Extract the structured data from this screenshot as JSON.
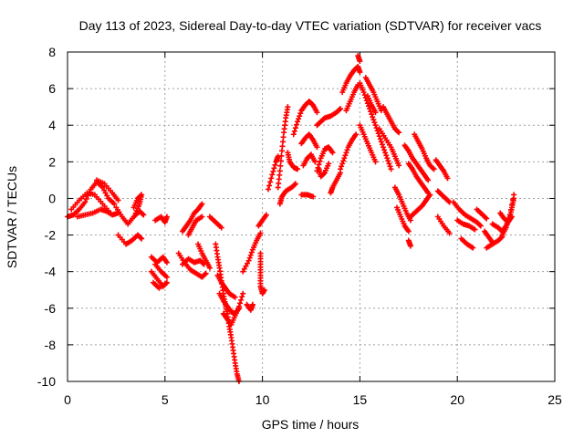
{
  "chart_data": {
    "type": "scatter",
    "title": "Day 113 of 2023, Sidereal Day-to-day VTEC variation (SDTVAR) for receiver vacs",
    "xlabel": "GPS time / hours",
    "ylabel": "SDTVAR / TECUs",
    "xlim": [
      0,
      25
    ],
    "ylim": [
      -10,
      8
    ],
    "xticks": [
      "0",
      "5",
      "10",
      "15",
      "20",
      "25"
    ],
    "yticks": [
      "-10",
      "-8",
      "-6",
      "-4",
      "-2",
      "0",
      "2",
      "4",
      "6",
      "8"
    ],
    "grid": true,
    "marker": "plus",
    "color": "#ff0000",
    "tracks": [
      [
        [
          0.0,
          -1.0
        ],
        [
          0.3,
          -0.9
        ],
        [
          0.6,
          -0.6
        ],
        [
          0.9,
          -0.2
        ],
        [
          1.2,
          0.5
        ],
        [
          1.5,
          0.9
        ],
        [
          1.8,
          0.6
        ],
        [
          2.1,
          0.0
        ],
        [
          2.4,
          -0.3
        ]
      ],
      [
        [
          0.5,
          -1.0
        ],
        [
          0.9,
          -0.9
        ],
        [
          1.3,
          -0.8
        ],
        [
          1.7,
          -0.6
        ],
        [
          2.0,
          -0.7
        ],
        [
          2.3,
          -0.9
        ],
        [
          2.6,
          -0.8
        ]
      ],
      [
        [
          0.2,
          -0.6
        ],
        [
          0.6,
          -0.1
        ],
        [
          1.0,
          0.3
        ],
        [
          1.4,
          0.2
        ],
        [
          1.8,
          -0.3
        ],
        [
          2.2,
          -0.8
        ]
      ],
      [
        [
          1.5,
          1.0
        ],
        [
          1.9,
          0.8
        ],
        [
          2.3,
          0.3
        ],
        [
          2.6,
          -0.1
        ]
      ],
      [
        [
          2.5,
          -0.5
        ],
        [
          2.8,
          -1.0
        ],
        [
          3.1,
          -1.4
        ],
        [
          3.4,
          -1.0
        ],
        [
          3.7,
          -0.7
        ],
        [
          3.9,
          -0.9
        ]
      ],
      [
        [
          2.6,
          -2.0
        ],
        [
          3.0,
          -2.5
        ],
        [
          3.3,
          -2.3
        ],
        [
          3.6,
          -2.0
        ],
        [
          3.8,
          -2.2
        ]
      ],
      [
        [
          3.4,
          -0.5
        ],
        [
          3.6,
          0.0
        ],
        [
          3.8,
          0.2
        ],
        [
          3.7,
          -0.3
        ],
        [
          3.5,
          -0.8
        ]
      ],
      [
        [
          4.5,
          -1.2
        ],
        [
          4.8,
          -1.0
        ],
        [
          5.0,
          -1.3
        ],
        [
          5.1,
          -1.0
        ]
      ],
      [
        [
          4.3,
          -3.2
        ],
        [
          4.6,
          -3.5
        ],
        [
          4.9,
          -3.2
        ],
        [
          5.1,
          -3.5
        ]
      ],
      [
        [
          4.3,
          -4.0
        ],
        [
          4.6,
          -4.4
        ],
        [
          4.9,
          -4.8
        ],
        [
          5.1,
          -4.6
        ],
        [
          4.7,
          -4.9
        ],
        [
          4.4,
          -4.6
        ]
      ],
      [
        [
          4.5,
          -3.6
        ],
        [
          4.8,
          -4.0
        ],
        [
          5.1,
          -4.3
        ]
      ],
      [
        [
          5.7,
          -3.0
        ],
        [
          6.0,
          -3.5
        ],
        [
          6.3,
          -3.9
        ],
        [
          6.6,
          -4.1
        ],
        [
          6.9,
          -4.3
        ],
        [
          7.1,
          -4.1
        ]
      ],
      [
        [
          5.9,
          -3.6
        ],
        [
          6.2,
          -3.3
        ],
        [
          6.5,
          -3.5
        ],
        [
          6.8,
          -3.4
        ],
        [
          7.0,
          -3.6
        ]
      ],
      [
        [
          5.9,
          -1.8
        ],
        [
          6.1,
          -1.5
        ],
        [
          6.3,
          -1.2
        ],
        [
          6.5,
          -0.8
        ],
        [
          6.7,
          -0.6
        ],
        [
          6.9,
          -0.3
        ]
      ],
      [
        [
          6.2,
          -2.0
        ],
        [
          6.4,
          -1.6
        ],
        [
          6.6,
          -1.2
        ],
        [
          6.9,
          -1.0
        ]
      ],
      [
        [
          6.7,
          -2.5
        ],
        [
          6.9,
          -3.0
        ],
        [
          7.1,
          -3.4
        ],
        [
          7.3,
          -3.8
        ]
      ],
      [
        [
          7.3,
          -1.0
        ],
        [
          7.6,
          -1.3
        ],
        [
          7.9,
          -1.6
        ]
      ],
      [
        [
          7.6,
          -2.5
        ],
        [
          7.7,
          -3.2
        ],
        [
          7.8,
          -3.8
        ],
        [
          7.9,
          -4.5
        ],
        [
          8.0,
          -5.2
        ],
        [
          8.1,
          -5.8
        ],
        [
          8.2,
          -6.3
        ],
        [
          8.3,
          -7.0
        ],
        [
          8.4,
          -7.6
        ],
        [
          8.5,
          -8.3
        ],
        [
          8.6,
          -9.0
        ],
        [
          8.7,
          -9.6
        ],
        [
          8.8,
          -10.0
        ]
      ],
      [
        [
          7.8,
          -5.2
        ],
        [
          8.0,
          -5.6
        ],
        [
          8.2,
          -5.9
        ],
        [
          8.4,
          -6.2
        ],
        [
          8.6,
          -6.3
        ],
        [
          8.8,
          -6.0
        ]
      ],
      [
        [
          7.7,
          -4.2
        ],
        [
          7.9,
          -4.6
        ],
        [
          8.1,
          -4.9
        ],
        [
          8.3,
          -5.2
        ],
        [
          8.6,
          -5.4
        ]
      ],
      [
        [
          8.0,
          -6.3
        ],
        [
          8.2,
          -6.6
        ],
        [
          8.4,
          -6.9
        ],
        [
          8.6,
          -6.4
        ],
        [
          8.8,
          -5.9
        ],
        [
          9.0,
          -5.2
        ]
      ],
      [
        [
          9.2,
          -5.8
        ],
        [
          9.4,
          -6.1
        ],
        [
          9.5,
          -5.8
        ]
      ],
      [
        [
          9.0,
          -4.0
        ],
        [
          9.3,
          -3.4
        ],
        [
          9.5,
          -2.8
        ],
        [
          9.7,
          -2.3
        ],
        [
          9.9,
          -1.9
        ]
      ],
      [
        [
          9.9,
          -3.0
        ],
        [
          9.9,
          -3.6
        ],
        [
          9.9,
          -4.2
        ],
        [
          9.9,
          -4.8
        ],
        [
          10.0,
          -5.2
        ],
        [
          10.1,
          -5.0
        ]
      ],
      [
        [
          9.8,
          -1.5
        ],
        [
          10.0,
          -1.2
        ],
        [
          10.2,
          -0.9
        ]
      ],
      [
        [
          10.3,
          0.5
        ],
        [
          10.5,
          1.3
        ],
        [
          10.7,
          2.0
        ],
        [
          10.8,
          2.3
        ]
      ],
      [
        [
          10.8,
          0.6
        ],
        [
          10.9,
          1.5
        ],
        [
          11.0,
          2.6
        ],
        [
          11.1,
          3.6
        ],
        [
          11.2,
          4.4
        ],
        [
          11.3,
          5.0
        ]
      ],
      [
        [
          10.9,
          -0.3
        ],
        [
          11.0,
          0.1
        ],
        [
          11.2,
          0.4
        ],
        [
          11.5,
          0.6
        ],
        [
          11.7,
          0.8
        ]
      ],
      [
        [
          11.3,
          2.5
        ],
        [
          11.4,
          2.0
        ],
        [
          11.6,
          1.7
        ],
        [
          11.8,
          1.6
        ]
      ],
      [
        [
          11.6,
          3.5
        ],
        [
          11.8,
          4.2
        ],
        [
          12.0,
          4.8
        ],
        [
          12.2,
          5.1
        ],
        [
          12.4,
          5.3
        ],
        [
          12.6,
          5.1
        ],
        [
          12.8,
          4.7
        ]
      ],
      [
        [
          12.0,
          0.2
        ],
        [
          12.3,
          0.2
        ],
        [
          12.6,
          0.1
        ]
      ],
      [
        [
          12.0,
          3.0
        ],
        [
          12.2,
          3.3
        ],
        [
          12.4,
          3.5
        ],
        [
          12.6,
          3.2
        ],
        [
          12.8,
          2.8
        ]
      ],
      [
        [
          12.1,
          1.8
        ],
        [
          12.3,
          2.2
        ],
        [
          12.5,
          2.4
        ],
        [
          12.7,
          2.0
        ]
      ],
      [
        [
          12.8,
          1.5
        ],
        [
          13.0,
          2.2
        ],
        [
          13.2,
          2.7
        ],
        [
          13.4,
          2.8
        ],
        [
          13.6,
          2.5
        ]
      ],
      [
        [
          12.8,
          4.0
        ],
        [
          13.0,
          4.2
        ],
        [
          13.2,
          4.4
        ],
        [
          13.5,
          4.5
        ],
        [
          13.8,
          4.7
        ],
        [
          14.0,
          4.9
        ]
      ],
      [
        [
          12.9,
          1.6
        ],
        [
          13.0,
          1.2
        ],
        [
          13.2,
          1.4
        ],
        [
          13.4,
          1.9
        ]
      ],
      [
        [
          13.5,
          0.3
        ],
        [
          13.6,
          0.6
        ],
        [
          13.8,
          1.0
        ],
        [
          14.0,
          1.4
        ]
      ],
      [
        [
          14.0,
          1.6
        ],
        [
          14.2,
          2.2
        ],
        [
          14.4,
          2.8
        ],
        [
          14.6,
          3.2
        ],
        [
          14.8,
          3.5
        ]
      ],
      [
        [
          14.1,
          5.8
        ],
        [
          14.3,
          6.3
        ],
        [
          14.5,
          6.7
        ],
        [
          14.7,
          7.0
        ],
        [
          14.9,
          7.2
        ],
        [
          15.0,
          6.9
        ]
      ],
      [
        [
          14.3,
          4.8
        ],
        [
          14.5,
          5.3
        ],
        [
          14.7,
          5.8
        ],
        [
          14.9,
          6.2
        ]
      ],
      [
        [
          14.9,
          7.8
        ],
        [
          15.0,
          7.5
        ]
      ],
      [
        [
          15.0,
          6.3
        ],
        [
          15.2,
          5.8
        ],
        [
          15.4,
          5.2
        ],
        [
          15.6,
          4.6
        ],
        [
          15.8,
          4.0
        ],
        [
          16.0,
          3.4
        ],
        [
          16.2,
          2.8
        ],
        [
          16.4,
          2.2
        ],
        [
          16.6,
          1.6
        ]
      ],
      [
        [
          15.0,
          4.0
        ],
        [
          15.2,
          3.5
        ],
        [
          15.4,
          3.0
        ],
        [
          15.6,
          2.5
        ],
        [
          15.8,
          2.0
        ]
      ],
      [
        [
          15.3,
          6.6
        ],
        [
          15.5,
          6.2
        ],
        [
          15.7,
          5.8
        ],
        [
          15.9,
          5.3
        ],
        [
          16.1,
          4.8
        ]
      ],
      [
        [
          15.4,
          5.6
        ],
        [
          15.6,
          5.1
        ],
        [
          15.8,
          4.7
        ]
      ],
      [
        [
          16.0,
          3.8
        ],
        [
          16.3,
          3.3
        ],
        [
          16.6,
          2.8
        ],
        [
          16.8,
          2.3
        ],
        [
          17.0,
          1.8
        ]
      ],
      [
        [
          16.2,
          5.0
        ],
        [
          16.4,
          4.6
        ],
        [
          16.6,
          4.2
        ],
        [
          16.8,
          3.8
        ],
        [
          17.0,
          3.6
        ]
      ],
      [
        [
          16.8,
          0.6
        ],
        [
          17.0,
          0.2
        ],
        [
          17.2,
          -0.3
        ],
        [
          17.4,
          -0.8
        ],
        [
          17.6,
          -1.2
        ]
      ],
      [
        [
          16.9,
          -0.5
        ],
        [
          17.1,
          -1.0
        ],
        [
          17.3,
          -1.5
        ],
        [
          17.5,
          -1.8
        ]
      ],
      [
        [
          17.3,
          2.9
        ],
        [
          17.5,
          2.6
        ],
        [
          17.7,
          2.2
        ],
        [
          17.9,
          1.9
        ],
        [
          18.1,
          1.6
        ],
        [
          18.3,
          1.3
        ],
        [
          18.5,
          1.0
        ]
      ],
      [
        [
          17.5,
          1.9
        ],
        [
          17.7,
          1.6
        ],
        [
          17.9,
          1.2
        ],
        [
          18.1,
          0.9
        ],
        [
          18.3,
          0.6
        ],
        [
          18.5,
          0.3
        ]
      ],
      [
        [
          17.8,
          3.5
        ],
        [
          18.0,
          3.1
        ],
        [
          18.2,
          2.7
        ],
        [
          18.4,
          2.2
        ],
        [
          18.6,
          1.8
        ],
        [
          18.8,
          1.6
        ]
      ],
      [
        [
          17.6,
          -1.0
        ],
        [
          17.8,
          -0.8
        ],
        [
          18.0,
          -0.6
        ],
        [
          18.2,
          -0.4
        ],
        [
          18.4,
          -0.1
        ],
        [
          18.6,
          0.2
        ]
      ],
      [
        [
          17.5,
          -2.3
        ],
        [
          17.6,
          -2.6
        ]
      ],
      [
        [
          18.9,
          2.1
        ],
        [
          19.1,
          1.8
        ],
        [
          19.3,
          1.5
        ],
        [
          19.5,
          1.1
        ]
      ],
      [
        [
          19.0,
          0.4
        ],
        [
          19.2,
          0.2
        ],
        [
          19.4,
          0.0
        ],
        [
          19.6,
          -0.2
        ]
      ],
      [
        [
          19.0,
          -1.0
        ],
        [
          19.3,
          -1.5
        ],
        [
          19.6,
          -1.9
        ]
      ],
      [
        [
          19.8,
          -0.2
        ],
        [
          20.1,
          -0.6
        ],
        [
          20.4,
          -0.9
        ],
        [
          20.7,
          -1.1
        ],
        [
          21.0,
          -1.3
        ],
        [
          21.2,
          -1.5
        ]
      ],
      [
        [
          20.0,
          -1.2
        ],
        [
          20.3,
          -1.4
        ],
        [
          20.6,
          -1.5
        ],
        [
          20.9,
          -1.7
        ]
      ],
      [
        [
          20.2,
          -2.2
        ],
        [
          20.5,
          -2.5
        ],
        [
          20.8,
          -2.7
        ]
      ],
      [
        [
          21.0,
          -0.6
        ],
        [
          21.3,
          -0.9
        ],
        [
          21.5,
          -1.1
        ]
      ],
      [
        [
          21.4,
          -1.8
        ],
        [
          21.6,
          -2.1
        ],
        [
          21.8,
          -2.4
        ]
      ],
      [
        [
          21.5,
          -2.7
        ],
        [
          21.8,
          -2.5
        ],
        [
          22.1,
          -2.3
        ],
        [
          22.3,
          -2.1
        ]
      ],
      [
        [
          21.8,
          -1.4
        ],
        [
          22.1,
          -1.6
        ],
        [
          22.3,
          -1.8
        ],
        [
          22.5,
          -1.5
        ],
        [
          22.7,
          -1.0
        ],
        [
          22.8,
          -0.5
        ],
        [
          22.9,
          0.0
        ]
      ],
      [
        [
          22.2,
          -0.8
        ],
        [
          22.4,
          -1.1
        ],
        [
          22.6,
          -1.3
        ],
        [
          22.8,
          -1.0
        ]
      ],
      [
        [
          22.3,
          -2.0
        ],
        [
          22.5,
          -1.6
        ],
        [
          22.7,
          -0.9
        ],
        [
          22.9,
          0.2
        ]
      ]
    ]
  }
}
